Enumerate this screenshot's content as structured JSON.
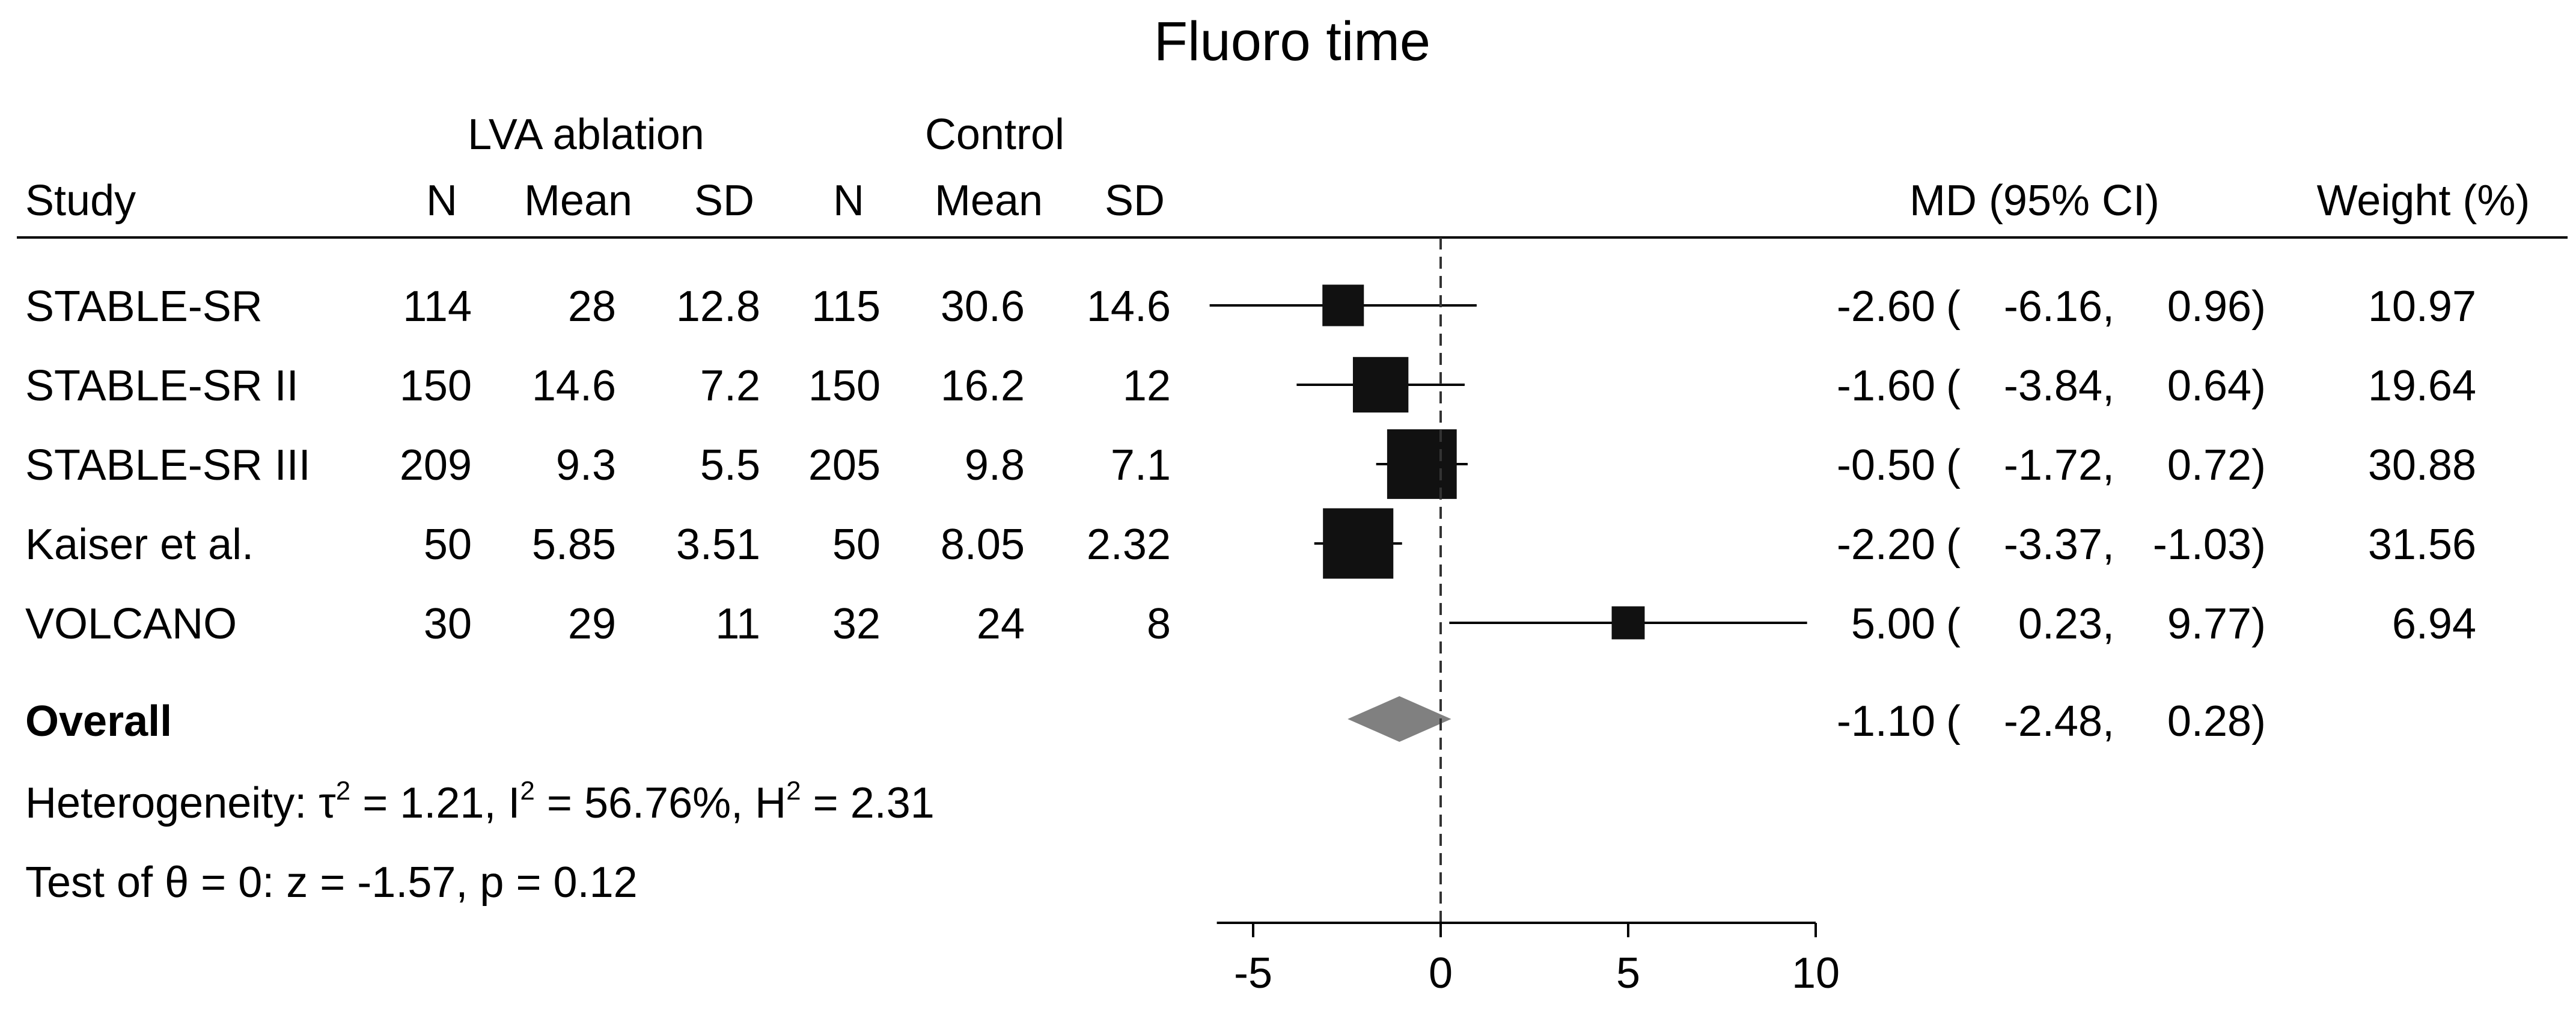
{
  "chart_data": {
    "type": "forest",
    "title": "Fluoro time",
    "group_headers": [
      "LVA ablation",
      "Control"
    ],
    "columns": [
      "Study",
      "N",
      "Mean",
      "SD",
      "N",
      "Mean",
      "SD",
      "MD (95% CI)",
      "Weight (%)"
    ],
    "studies": [
      {
        "name": "STABLE-SR",
        "n1": "114",
        "mean1": "28",
        "sd1": "12.8",
        "n2": "115",
        "mean2": "30.6",
        "sd2": "14.6",
        "md": -2.6,
        "lo": -6.16,
        "hi": 0.96,
        "md_text": "-2.60",
        "lo_text": "-6.16,",
        "hi_text": "0.96)",
        "weight": 10.97,
        "weight_text": "10.97"
      },
      {
        "name": "STABLE-SR II",
        "n1": "150",
        "mean1": "14.6",
        "sd1": "7.2",
        "n2": "150",
        "mean2": "16.2",
        "sd2": "12",
        "md": -1.6,
        "lo": -3.84,
        "hi": 0.64,
        "md_text": "-1.60",
        "lo_text": "-3.84,",
        "hi_text": "0.64)",
        "weight": 19.64,
        "weight_text": "19.64"
      },
      {
        "name": "STABLE-SR III",
        "n1": "209",
        "mean1": "9.3",
        "sd1": "5.5",
        "n2": "205",
        "mean2": "9.8",
        "sd2": "7.1",
        "md": -0.5,
        "lo": -1.72,
        "hi": 0.72,
        "md_text": "-0.50",
        "lo_text": "-1.72,",
        "hi_text": "0.72)",
        "weight": 30.88,
        "weight_text": "30.88"
      },
      {
        "name": "Kaiser et al.",
        "n1": "50",
        "mean1": "5.85",
        "sd1": "3.51",
        "n2": "50",
        "mean2": "8.05",
        "sd2": "2.32",
        "md": -2.2,
        "lo": -3.37,
        "hi": -1.03,
        "md_text": "-2.20",
        "lo_text": "-3.37,",
        "hi_text": "-1.03)",
        "weight": 31.56,
        "weight_text": "31.56"
      },
      {
        "name": "VOLCANO",
        "n1": "30",
        "mean1": "29",
        "sd1": "11",
        "n2": "32",
        "mean2": "24",
        "sd2": "8",
        "md": 5.0,
        "lo": 0.23,
        "hi": 9.77,
        "md_text": "5.00",
        "lo_text": "0.23,",
        "hi_text": "9.77)",
        "weight": 6.94,
        "weight_text": "6.94"
      }
    ],
    "overall": {
      "label": "Overall",
      "md": -1.1,
      "lo": -2.48,
      "hi": 0.28,
      "md_text": "-1.10",
      "lo_text": "-2.48,",
      "hi_text": "0.28)"
    },
    "heterogeneity": {
      "prefix": "Heterogeneity: τ",
      "tau_exp": "2",
      "tau_val": " = 1.21, I",
      "i_exp": "2",
      "i_val": " = 56.76%, H",
      "h_exp": "2",
      "h_val": " = 2.31"
    },
    "test": "Test of θ = 0: z = -1.57, p = 0.12",
    "x_ticks": [
      -5,
      0,
      5,
      10
    ],
    "x_tick_labels": [
      "-5",
      "0",
      "5",
      "10"
    ],
    "xlim": [
      -6.16,
      10
    ],
    "null_line": 0,
    "colors": {
      "marker": "#111111",
      "diamond": "#808080",
      "line": "#000000"
    }
  }
}
